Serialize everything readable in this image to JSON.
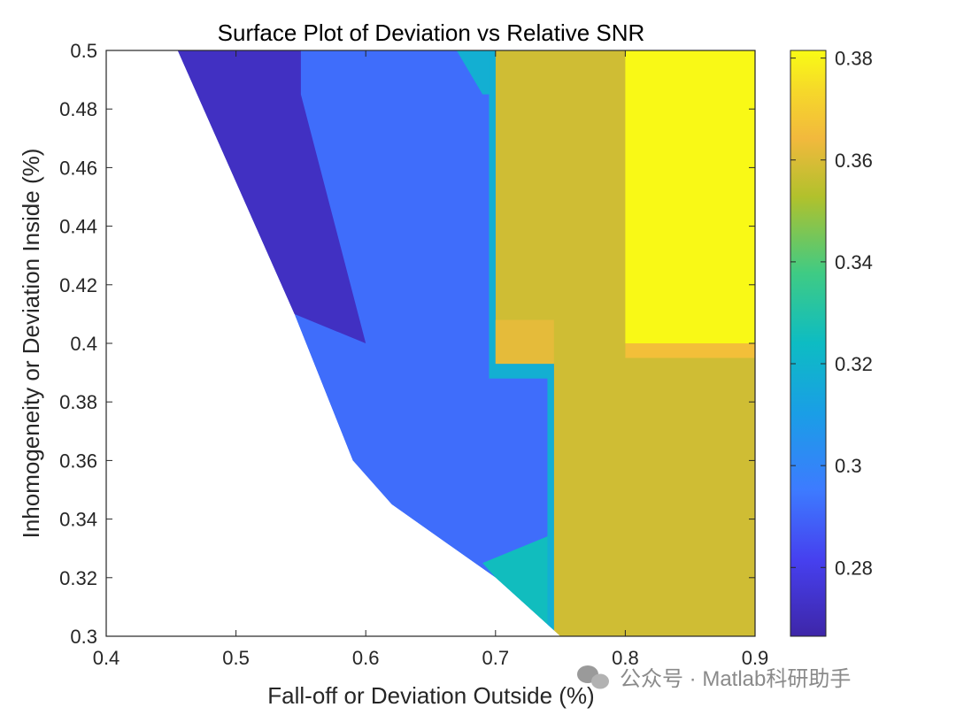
{
  "chart_data": {
    "type": "heatmap",
    "title": "Surface Plot of Deviation vs Relative SNR",
    "xlabel": "Fall-off or Deviation Outside (%)",
    "ylabel": "Inhomogeneity or Deviation Inside (%)",
    "xlim": [
      0.4,
      0.9
    ],
    "ylim": [
      0.3,
      0.5
    ],
    "xticks": [
      0.4,
      0.5,
      0.6,
      0.7,
      0.8,
      0.9
    ],
    "xtick_labels": [
      "0.4",
      "0.5",
      "0.6",
      "0.7",
      "0.8",
      "0.9"
    ],
    "yticks": [
      0.3,
      0.32,
      0.34,
      0.36,
      0.38,
      0.4,
      0.42,
      0.44,
      0.46,
      0.48,
      0.5
    ],
    "ytick_labels": [
      "0.3",
      "0.32",
      "0.34",
      "0.36",
      "0.38",
      "0.4",
      "0.42",
      "0.44",
      "0.46",
      "0.48",
      "0.5"
    ],
    "grid": true,
    "colormap": "parula",
    "colorbar": {
      "range": [
        0.2665,
        0.3815
      ],
      "ticks": [
        0.28,
        0.3,
        0.32,
        0.34,
        0.36,
        0.38
      ],
      "tick_labels": [
        "0.28",
        "0.3",
        "0.32",
        "0.34",
        "0.36",
        "0.38"
      ]
    },
    "regions": [
      {
        "name": "valid-domain-boundary",
        "note": "no data left of boundary",
        "boundary": [
          [
            0.455,
            0.5
          ],
          [
            0.495,
            0.46
          ],
          [
            0.545,
            0.41
          ],
          [
            0.59,
            0.36
          ],
          [
            0.62,
            0.345
          ],
          [
            0.7,
            0.32
          ],
          [
            0.75,
            0.3
          ]
        ]
      },
      {
        "name": "low-dark-blue",
        "x": [
          0.455,
          0.55
        ],
        "value": 0.272
      },
      {
        "name": "mid-blue",
        "x": [
          0.55,
          0.745
        ],
        "value": 0.292
      },
      {
        "name": "cyan-strip",
        "x": [
          0.68,
          0.7
        ],
        "y": [
          0.485,
          0.5
        ],
        "value": 0.318
      },
      {
        "name": "cyan-bottom",
        "x": [
          0.69,
          0.75
        ],
        "y": [
          0.3,
          0.33
        ],
        "value": 0.325
      },
      {
        "name": "orange-notch",
        "x": [
          0.7,
          0.745
        ],
        "y": [
          0.393,
          0.408
        ],
        "value": 0.362
      },
      {
        "name": "olive-block",
        "x": [
          0.7,
          0.9
        ],
        "value": 0.358
      },
      {
        "name": "yellow-block",
        "x": [
          0.8,
          0.9
        ],
        "y": [
          0.4,
          0.5
        ],
        "value": 0.381
      }
    ]
  },
  "watermark": {
    "text": "公众号 · Matlab科研助手",
    "icon": "wechat-icon"
  }
}
